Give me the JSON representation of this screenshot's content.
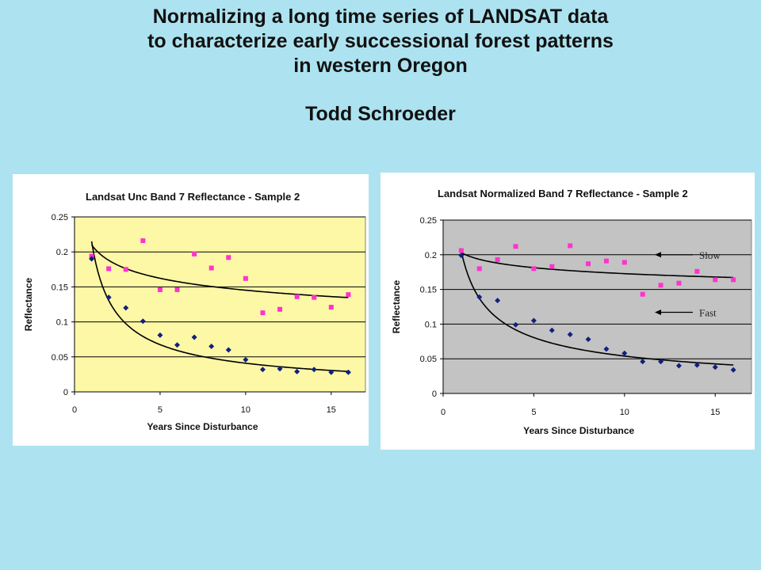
{
  "slide": {
    "title_lines": [
      "Normalizing a long time series of LANDSAT data",
      "to characterize early successional forest patterns",
      "in western Oregon"
    ],
    "author": "Todd Schroeder"
  },
  "colors": {
    "slide_background": "#ade3f0",
    "left_plot_background": "#fdf8a6",
    "right_plot_background": "#c3c3c3",
    "series_high_color": "#ff33cc",
    "series_low_color": "#102080",
    "trendline_color": "#000000"
  },
  "chart_data": [
    {
      "type": "scatter",
      "title": "Landsat Unc Band 7 Reflectance - Sample 2",
      "xlabel": "Years Since Disturbance",
      "ylabel": "Reflectance",
      "xlim": [
        0,
        17
      ],
      "ylim": [
        0,
        0.25
      ],
      "xticks": [
        0,
        5,
        10,
        15
      ],
      "yticks": [
        0,
        0.05,
        0.1,
        0.15,
        0.2,
        0.25
      ],
      "ytick_labels": [
        "0",
        "0.05",
        "0.1",
        "0.15",
        "0.2",
        "0.25"
      ],
      "grid": "horizontal",
      "legend": "none",
      "series": [
        {
          "marker": "square",
          "color": "#ff33cc",
          "x": [
            1,
            2,
            3,
            4,
            5,
            6,
            7,
            8,
            9,
            10,
            11,
            12,
            13,
            14,
            15,
            16
          ],
          "y": [
            0.194,
            0.176,
            0.175,
            0.216,
            0.146,
            0.146,
            0.197,
            0.177,
            0.192,
            0.162,
            0.113,
            0.118,
            0.136,
            0.135,
            0.121,
            0.139
          ]
        },
        {
          "marker": "diamond",
          "color": "#102080",
          "x": [
            1,
            2,
            3,
            4,
            5,
            6,
            7,
            8,
            9,
            10,
            11,
            12,
            13,
            14,
            15,
            16
          ],
          "y": [
            0.19,
            0.135,
            0.12,
            0.101,
            0.081,
            0.067,
            0.078,
            0.065,
            0.06,
            0.046,
            0.032,
            0.033,
            0.029,
            0.032,
            0.028,
            0.028
          ]
        }
      ],
      "trendlines": [
        {
          "type": "power",
          "a": 0.21,
          "b": -0.16,
          "x_range": [
            1,
            16
          ]
        },
        {
          "type": "power",
          "a": 0.215,
          "b": -0.72,
          "x_range": [
            1,
            16
          ]
        }
      ]
    },
    {
      "type": "scatter",
      "title": "Landsat Normalized Band 7 Reflectance - Sample 2",
      "xlabel": "Years Since Disturbance",
      "ylabel": "Reflectance",
      "xlim": [
        0,
        17
      ],
      "ylim": [
        0,
        0.25
      ],
      "xticks": [
        0,
        5,
        10,
        15
      ],
      "yticks": [
        0,
        0.05,
        0.1,
        0.15,
        0.2,
        0.25
      ],
      "ytick_labels": [
        "0",
        "0.05",
        "0.1",
        "0.15",
        "0.2",
        "0.25"
      ],
      "grid": "horizontal",
      "legend": "none",
      "series": [
        {
          "marker": "square",
          "color": "#ff33cc",
          "x": [
            1,
            2,
            3,
            4,
            5,
            6,
            7,
            8,
            9,
            10,
            11,
            12,
            13,
            14,
            15,
            16
          ],
          "y": [
            0.206,
            0.18,
            0.193,
            0.212,
            0.18,
            0.183,
            0.213,
            0.187,
            0.191,
            0.189,
            0.143,
            0.156,
            0.159,
            0.176,
            0.164,
            0.164
          ]
        },
        {
          "marker": "diamond",
          "color": "#102080",
          "x": [
            1,
            2,
            3,
            4,
            5,
            6,
            7,
            8,
            9,
            10,
            11,
            12,
            13,
            14,
            15,
            16
          ],
          "y": [
            0.199,
            0.139,
            0.134,
            0.099,
            0.105,
            0.091,
            0.085,
            0.078,
            0.064,
            0.058,
            0.046,
            0.046,
            0.04,
            0.041,
            0.038,
            0.034
          ]
        }
      ],
      "trendlines": [
        {
          "type": "power",
          "a": 0.203,
          "b": -0.07,
          "x_range": [
            1,
            16
          ]
        },
        {
          "type": "power",
          "a": 0.205,
          "b": -0.58,
          "x_range": [
            1,
            16
          ]
        }
      ],
      "annotations": [
        {
          "text": "Slow",
          "arrow": "left",
          "y": 0.2
        },
        {
          "text": "Fast",
          "arrow": "left",
          "y": 0.117
        }
      ]
    }
  ]
}
